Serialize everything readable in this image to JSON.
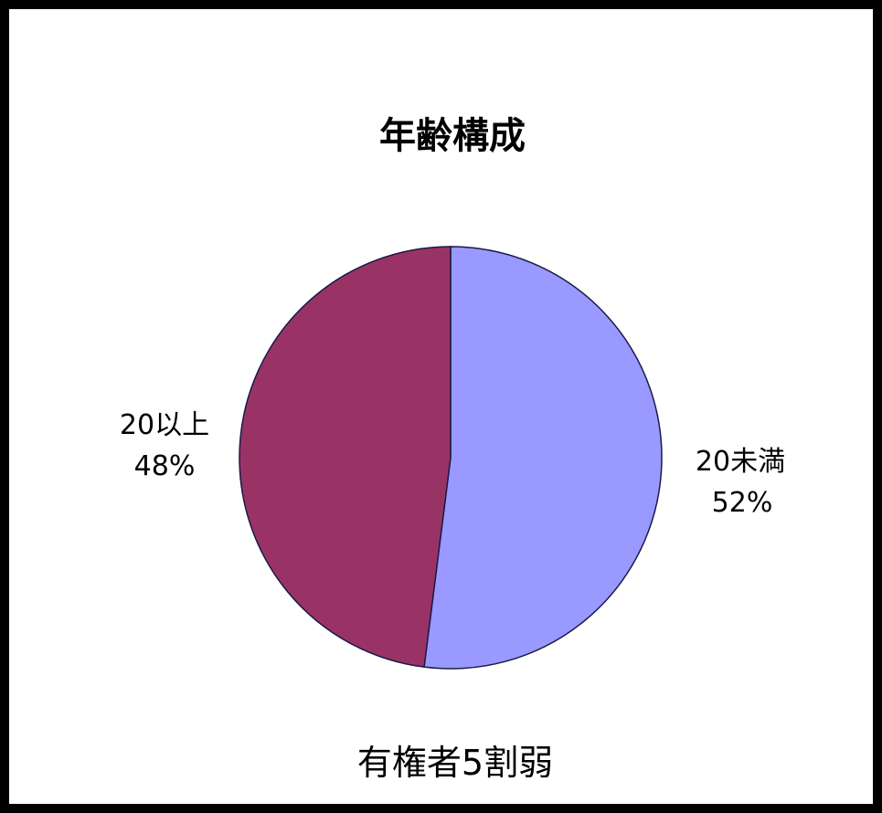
{
  "chart_data": {
    "type": "pie",
    "title": "年齢構成",
    "slices": [
      {
        "label": "20未満",
        "percent_label": "52%",
        "value": 52,
        "color": "#9999ff"
      },
      {
        "label": "20以上",
        "percent_label": "48%",
        "value": 48,
        "color": "#993366"
      }
    ],
    "start_angle_deg": 0,
    "direction": "clockwise",
    "legend": "none"
  },
  "caption": "有権者5割弱",
  "colors": {
    "frame": "#000000",
    "background": "#ffffff",
    "outline": "#1a1a4a"
  }
}
